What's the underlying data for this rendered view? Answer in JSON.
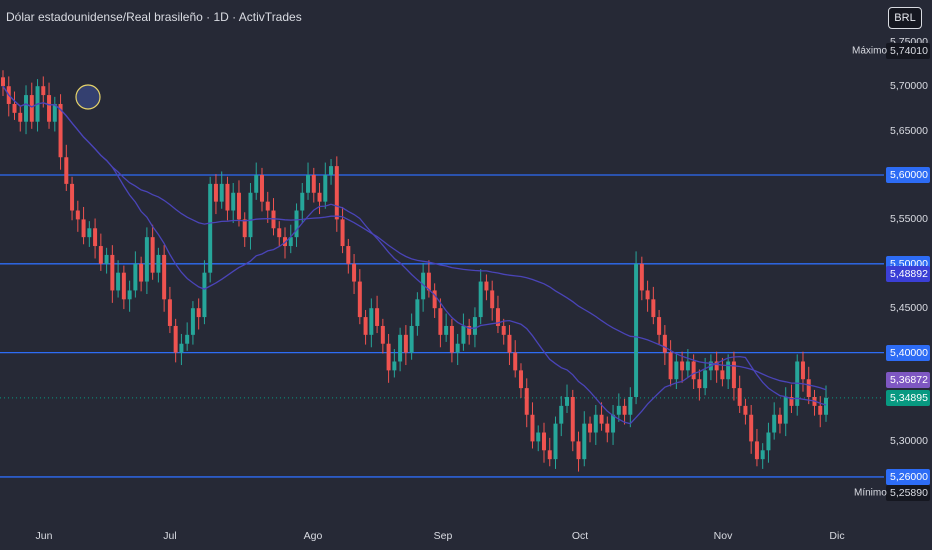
{
  "header": {
    "title": "Dólar estadounidense/Real brasileño · 1D · ActivTrades",
    "currency": "BRL"
  },
  "colors": {
    "background": "#262936",
    "up": "#26a69a",
    "down": "#ef5350",
    "level_line": "#2d6cf5",
    "ma_line": "#4a44b8",
    "current": "#089981",
    "ma_label": "#7e57c2"
  },
  "yaxis": {
    "ticks": [
      "5,75000",
      "5,70000",
      "5,65000",
      "5,55000",
      "5,45000",
      "5,30000"
    ]
  },
  "price_labels": [
    {
      "text": "5,74010",
      "kind": "max"
    },
    {
      "text": "5,60000",
      "kind": "level"
    },
    {
      "text": "5,50000",
      "kind": "level"
    },
    {
      "text": "5,48892",
      "kind": "ma"
    },
    {
      "text": "5,40000",
      "kind": "level"
    },
    {
      "text": "5,36872",
      "kind": "ma2"
    },
    {
      "text": "5,34895",
      "kind": "current"
    },
    {
      "text": "5,26000",
      "kind": "level"
    },
    {
      "text": "5,25890",
      "kind": "min"
    }
  ],
  "extremes": {
    "max_label": "Máximo",
    "min_label": "Mínimo"
  },
  "xaxis": {
    "ticks": [
      "Jun",
      "Jul",
      "Ago",
      "Sep",
      "Oct",
      "Nov",
      "Dic"
    ]
  },
  "chart_data": {
    "type": "candlestick",
    "symbol": "USD/BRL",
    "interval": "1D",
    "horizontal_levels": [
      5.6,
      5.5,
      5.4,
      5.26
    ],
    "current_price": 5.34895,
    "max_price": 5.7401,
    "min_price": 5.2589,
    "ma_value": 5.48892,
    "ma2_value": 5.36872,
    "closes": [
      5.7,
      5.68,
      5.67,
      5.66,
      5.69,
      5.66,
      5.7,
      5.69,
      5.66,
      5.68,
      5.62,
      5.59,
      5.56,
      5.55,
      5.53,
      5.54,
      5.52,
      5.5,
      5.51,
      5.47,
      5.49,
      5.46,
      5.47,
      5.5,
      5.48,
      5.53,
      5.49,
      5.51,
      5.46,
      5.43,
      5.4,
      5.41,
      5.42,
      5.45,
      5.44,
      5.49,
      5.59,
      5.57,
      5.59,
      5.56,
      5.58,
      5.55,
      5.53,
      5.58,
      5.6,
      5.57,
      5.56,
      5.54,
      5.53,
      5.52,
      5.53,
      5.56,
      5.58,
      5.6,
      5.58,
      5.57,
      5.6,
      5.61,
      5.55,
      5.52,
      5.5,
      5.48,
      5.44,
      5.42,
      5.45,
      5.43,
      5.41,
      5.38,
      5.39,
      5.42,
      5.4,
      5.43,
      5.46,
      5.49,
      5.47,
      5.45,
      5.42,
      5.43,
      5.4,
      5.41,
      5.43,
      5.42,
      5.44,
      5.48,
      5.47,
      5.45,
      5.43,
      5.42,
      5.4,
      5.38,
      5.36,
      5.33,
      5.3,
      5.31,
      5.29,
      5.28,
      5.32,
      5.34,
      5.35,
      5.3,
      5.28,
      5.32,
      5.31,
      5.33,
      5.32,
      5.31,
      5.33,
      5.34,
      5.33,
      5.35,
      5.5,
      5.47,
      5.46,
      5.44,
      5.42,
      5.4,
      5.37,
      5.39,
      5.38,
      5.39,
      5.37,
      5.36,
      5.38,
      5.39,
      5.38,
      5.37,
      5.39,
      5.36,
      5.34,
      5.33,
      5.3,
      5.28,
      5.29,
      5.31,
      5.33,
      5.32,
      5.35,
      5.34,
      5.39,
      5.37,
      5.35,
      5.34,
      5.33,
      5.349
    ]
  }
}
